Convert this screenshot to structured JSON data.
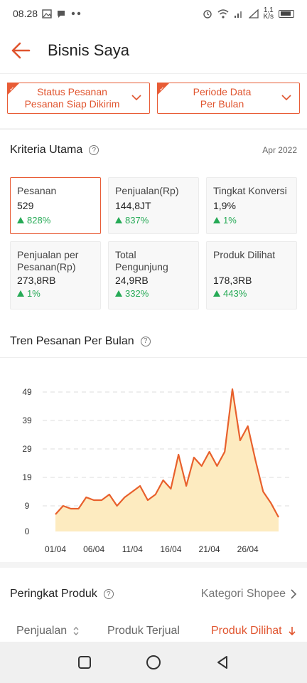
{
  "status_bar": {
    "time": "08.28",
    "speed_value": "1,1",
    "speed_unit": "K/s",
    "left_icons": [
      "image-icon",
      "chat-bubble-icon",
      "dots-icon"
    ],
    "right_icons": [
      "alarm-icon",
      "wifi-icon",
      "signal-icon",
      "signal-icon",
      "battery-icon"
    ]
  },
  "app_bar": {
    "title": "Bisnis Saya",
    "back_icon": "arrow-left-icon"
  },
  "filters": [
    {
      "line1": "Status Pesanan",
      "line2": "Pesanan Siap Dikirim"
    },
    {
      "line1": "Periode Data",
      "line2": "Per Bulan"
    }
  ],
  "kriteria": {
    "title": "Kriteria Utama",
    "date": "Apr 2022",
    "cards": [
      {
        "label": "Pesanan",
        "value": "529",
        "change": "828%"
      },
      {
        "label": "Penjualan(Rp)",
        "value": "144,8JT",
        "change": "837%"
      },
      {
        "label": "Tingkat Konversi",
        "value": "1,9%",
        "change": "1%"
      },
      {
        "label": "Penjualan per Pesanan(Rp)",
        "value": "273,8RB",
        "change": "1%"
      },
      {
        "label": "Total Pengunjung",
        "value": "24,9RB",
        "change": "332%"
      },
      {
        "label": "Produk Dilihat",
        "value": "178,3RB",
        "change": "443%"
      }
    ]
  },
  "tren": {
    "title": "Tren Pesanan Per Bulan"
  },
  "chart_data": {
    "type": "area",
    "title": "",
    "xlabel": "",
    "ylabel": "",
    "x_tick_labels": [
      "01/04",
      "06/04",
      "11/04",
      "16/04",
      "21/04",
      "26/04"
    ],
    "y_tick_labels": [
      "0",
      "9",
      "19",
      "29",
      "39",
      "49"
    ],
    "ylim": [
      0,
      49
    ],
    "grid": true,
    "colors": {
      "line": "#e8602c",
      "fill": "#fdebc0",
      "grid": "#dddddd"
    },
    "x": [
      "01/04",
      "02/04",
      "03/04",
      "04/04",
      "05/04",
      "06/04",
      "07/04",
      "08/04",
      "09/04",
      "10/04",
      "11/04",
      "12/04",
      "13/04",
      "14/04",
      "15/04",
      "16/04",
      "17/04",
      "18/04",
      "19/04",
      "20/04",
      "21/04",
      "22/04",
      "23/04",
      "24/04",
      "25/04",
      "26/04",
      "27/04",
      "28/04",
      "29/04",
      "30/04"
    ],
    "series": [
      {
        "values": [
          6,
          9,
          8,
          8,
          12,
          11,
          11,
          13,
          9,
          12,
          14,
          16,
          11,
          13,
          18,
          15,
          27,
          16,
          26,
          23,
          28,
          23,
          28,
          50,
          32,
          37,
          25,
          14,
          10,
          5
        ]
      }
    ]
  },
  "peringkat": {
    "title": "Peringkat Produk",
    "kategori": "Kategori Shopee",
    "tabs": [
      "Penjualan",
      "Produk Terjual",
      "Produk Dilihat"
    ]
  },
  "navbar": {
    "icons": [
      "square-recents-icon",
      "circle-home-icon",
      "triangle-back-icon"
    ]
  }
}
